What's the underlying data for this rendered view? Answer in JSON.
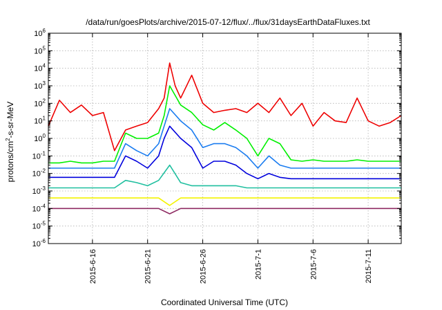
{
  "chart_data": {
    "type": "line",
    "title": "/data/run/goesPlots/archive/2015-07-12/flux/../flux/31daysEarthDataFluxes.txt",
    "xlabel": "Coordinated Universal Time (UTC)",
    "ylabel": {
      "prefix": "protons/cm",
      "sup": "2",
      "suffix": "-s-sr-MeV"
    },
    "x_range": [
      "2015-06-12",
      "2015-07-14"
    ],
    "x_ticks": [
      "2015-6-16",
      "2015-6-21",
      "2015-6-26",
      "2015-7-1",
      "2015-7-6",
      "2015-7-11"
    ],
    "y_scale": "log",
    "y_range": [
      1e-06,
      1000000.0
    ],
    "y_ticks": [
      {
        "base": "10",
        "exp": "-6"
      },
      {
        "base": "10",
        "exp": "-5"
      },
      {
        "base": "10",
        "exp": "-4"
      },
      {
        "base": "10",
        "exp": "-3"
      },
      {
        "base": "10",
        "exp": "-2"
      },
      {
        "base": "10",
        "exp": "-1"
      },
      {
        "base": "10",
        "exp": "0"
      },
      {
        "base": "10",
        "exp": "1"
      },
      {
        "base": "10",
        "exp": "2"
      },
      {
        "base": "10",
        "exp": "3"
      },
      {
        "base": "10",
        "exp": "4"
      },
      {
        "base": "10",
        "exp": "5"
      },
      {
        "base": "10",
        "exp": "6"
      }
    ],
    "grid": true,
    "series": [
      {
        "color": "#ee0000",
        "width": 1.6,
        "points": [
          [
            "2015-06-12",
            5
          ],
          [
            "2015-06-13",
            150
          ],
          [
            "2015-06-14",
            30
          ],
          [
            "2015-06-15",
            80
          ],
          [
            "2015-06-16",
            20
          ],
          [
            "2015-06-17",
            30
          ],
          [
            "2015-06-18",
            0.2
          ],
          [
            "2015-06-19",
            3
          ],
          [
            "2015-06-20",
            5
          ],
          [
            "2015-06-21",
            8
          ],
          [
            "2015-06-22",
            50
          ],
          [
            "2015-06-22T12:00",
            200
          ],
          [
            "2015-06-23",
            20000
          ],
          [
            "2015-06-23T12:00",
            1000
          ],
          [
            "2015-06-24",
            200
          ],
          [
            "2015-06-25",
            4000
          ],
          [
            "2015-06-26",
            100
          ],
          [
            "2015-06-27",
            30
          ],
          [
            "2015-06-28",
            40
          ],
          [
            "2015-06-29",
            50
          ],
          [
            "2015-06-30",
            30
          ],
          [
            "2015-07-01",
            100
          ],
          [
            "2015-07-02",
            30
          ],
          [
            "2015-07-03",
            200
          ],
          [
            "2015-07-04",
            20
          ],
          [
            "2015-07-05",
            100
          ],
          [
            "2015-07-06",
            5
          ],
          [
            "2015-07-07",
            30
          ],
          [
            "2015-07-08",
            10
          ],
          [
            "2015-07-09",
            8
          ],
          [
            "2015-07-10",
            200
          ],
          [
            "2015-07-11",
            10
          ],
          [
            "2015-07-12",
            5
          ],
          [
            "2015-07-13",
            8
          ],
          [
            "2015-07-14",
            20
          ]
        ]
      },
      {
        "color": "#00f000",
        "width": 1.6,
        "points": [
          [
            "2015-06-12",
            0.04
          ],
          [
            "2015-06-13",
            0.04
          ],
          [
            "2015-06-14",
            0.05
          ],
          [
            "2015-06-15",
            0.04
          ],
          [
            "2015-06-16",
            0.04
          ],
          [
            "2015-06-17",
            0.05
          ],
          [
            "2015-06-18",
            0.05
          ],
          [
            "2015-06-19",
            2
          ],
          [
            "2015-06-20",
            1
          ],
          [
            "2015-06-21",
            1
          ],
          [
            "2015-06-22",
            2
          ],
          [
            "2015-06-22T12:00",
            20
          ],
          [
            "2015-06-23",
            1000
          ],
          [
            "2015-06-24",
            80
          ],
          [
            "2015-06-25",
            30
          ],
          [
            "2015-06-26",
            6
          ],
          [
            "2015-06-27",
            3
          ],
          [
            "2015-06-28",
            8
          ],
          [
            "2015-06-29",
            3
          ],
          [
            "2015-06-30",
            1
          ],
          [
            "2015-07-01",
            0.1
          ],
          [
            "2015-07-02",
            1
          ],
          [
            "2015-07-03",
            0.5
          ],
          [
            "2015-07-04",
            0.06
          ],
          [
            "2015-07-05",
            0.05
          ],
          [
            "2015-07-06",
            0.06
          ],
          [
            "2015-07-07",
            0.05
          ],
          [
            "2015-07-08",
            0.05
          ],
          [
            "2015-07-09",
            0.05
          ],
          [
            "2015-07-10",
            0.06
          ],
          [
            "2015-07-11",
            0.05
          ],
          [
            "2015-07-12",
            0.05
          ],
          [
            "2015-07-13",
            0.05
          ],
          [
            "2015-07-14",
            0.05
          ]
        ]
      },
      {
        "color": "#1a7cf0",
        "width": 1.6,
        "points": [
          [
            "2015-06-12",
            0.02
          ],
          [
            "2015-06-13",
            0.02
          ],
          [
            "2015-06-14",
            0.02
          ],
          [
            "2015-06-15",
            0.02
          ],
          [
            "2015-06-16",
            0.02
          ],
          [
            "2015-06-17",
            0.02
          ],
          [
            "2015-06-18",
            0.02
          ],
          [
            "2015-06-19",
            0.5
          ],
          [
            "2015-06-20",
            0.2
          ],
          [
            "2015-06-21",
            0.1
          ],
          [
            "2015-06-22",
            0.5
          ],
          [
            "2015-06-22T12:00",
            5
          ],
          [
            "2015-06-23",
            50
          ],
          [
            "2015-06-24",
            10
          ],
          [
            "2015-06-25",
            3
          ],
          [
            "2015-06-26",
            0.3
          ],
          [
            "2015-06-27",
            0.5
          ],
          [
            "2015-06-28",
            0.5
          ],
          [
            "2015-06-29",
            0.3
          ],
          [
            "2015-06-30",
            0.1
          ],
          [
            "2015-07-01",
            0.02
          ],
          [
            "2015-07-02",
            0.1
          ],
          [
            "2015-07-03",
            0.03
          ],
          [
            "2015-07-04",
            0.02
          ],
          [
            "2015-07-05",
            0.02
          ],
          [
            "2015-07-06",
            0.02
          ],
          [
            "2015-07-07",
            0.02
          ],
          [
            "2015-07-08",
            0.02
          ],
          [
            "2015-07-09",
            0.02
          ],
          [
            "2015-07-10",
            0.02
          ],
          [
            "2015-07-11",
            0.02
          ],
          [
            "2015-07-12",
            0.02
          ],
          [
            "2015-07-13",
            0.02
          ],
          [
            "2015-07-14",
            0.02
          ]
        ]
      },
      {
        "color": "#0000dd",
        "width": 1.6,
        "points": [
          [
            "2015-06-12",
            0.006
          ],
          [
            "2015-06-13",
            0.006
          ],
          [
            "2015-06-14",
            0.006
          ],
          [
            "2015-06-15",
            0.006
          ],
          [
            "2015-06-16",
            0.006
          ],
          [
            "2015-06-17",
            0.006
          ],
          [
            "2015-06-18",
            0.006
          ],
          [
            "2015-06-19",
            0.1
          ],
          [
            "2015-06-20",
            0.05
          ],
          [
            "2015-06-21",
            0.02
          ],
          [
            "2015-06-22",
            0.1
          ],
          [
            "2015-06-22T12:00",
            1
          ],
          [
            "2015-06-23",
            5
          ],
          [
            "2015-06-24",
            1
          ],
          [
            "2015-06-25",
            0.3
          ],
          [
            "2015-06-26",
            0.02
          ],
          [
            "2015-06-27",
            0.05
          ],
          [
            "2015-06-28",
            0.05
          ],
          [
            "2015-06-29",
            0.03
          ],
          [
            "2015-06-30",
            0.01
          ],
          [
            "2015-07-01",
            0.005
          ],
          [
            "2015-07-02",
            0.01
          ],
          [
            "2015-07-03",
            0.006
          ],
          [
            "2015-07-04",
            0.005
          ],
          [
            "2015-07-05",
            0.005
          ],
          [
            "2015-07-06",
            0.005
          ],
          [
            "2015-07-07",
            0.005
          ],
          [
            "2015-07-08",
            0.005
          ],
          [
            "2015-07-09",
            0.005
          ],
          [
            "2015-07-10",
            0.005
          ],
          [
            "2015-07-11",
            0.005
          ],
          [
            "2015-07-12",
            0.005
          ],
          [
            "2015-07-13",
            0.005
          ],
          [
            "2015-07-14",
            0.005
          ]
        ]
      },
      {
        "color": "#1fbf9f",
        "width": 1.6,
        "points": [
          [
            "2015-06-12",
            0.0015
          ],
          [
            "2015-06-13",
            0.0015
          ],
          [
            "2015-06-14",
            0.0015
          ],
          [
            "2015-06-15",
            0.0015
          ],
          [
            "2015-06-16",
            0.0015
          ],
          [
            "2015-06-17",
            0.0015
          ],
          [
            "2015-06-18",
            0.0015
          ],
          [
            "2015-06-19",
            0.004
          ],
          [
            "2015-06-20",
            0.003
          ],
          [
            "2015-06-21",
            0.002
          ],
          [
            "2015-06-22",
            0.004
          ],
          [
            "2015-06-23",
            0.03
          ],
          [
            "2015-06-24",
            0.003
          ],
          [
            "2015-06-25",
            0.002
          ],
          [
            "2015-06-26",
            0.002
          ],
          [
            "2015-06-27",
            0.002
          ],
          [
            "2015-06-28",
            0.002
          ],
          [
            "2015-06-29",
            0.002
          ],
          [
            "2015-06-30",
            0.0015
          ],
          [
            "2015-07-01",
            0.0015
          ],
          [
            "2015-07-02",
            0.0015
          ],
          [
            "2015-07-03",
            0.0015
          ],
          [
            "2015-07-04",
            0.0015
          ],
          [
            "2015-07-05",
            0.0015
          ],
          [
            "2015-07-06",
            0.0015
          ],
          [
            "2015-07-07",
            0.0015
          ],
          [
            "2015-07-08",
            0.0015
          ],
          [
            "2015-07-09",
            0.0015
          ],
          [
            "2015-07-10",
            0.0015
          ],
          [
            "2015-07-11",
            0.0015
          ],
          [
            "2015-07-12",
            0.0015
          ],
          [
            "2015-07-13",
            0.0015
          ],
          [
            "2015-07-14",
            0.0015
          ]
        ]
      },
      {
        "color": "#f4f400",
        "width": 1.6,
        "points": [
          [
            "2015-06-12",
            0.0004
          ],
          [
            "2015-06-14",
            0.0004
          ],
          [
            "2015-06-16",
            0.0004
          ],
          [
            "2015-06-18",
            0.0004
          ],
          [
            "2015-06-20",
            0.0004
          ],
          [
            "2015-06-22",
            0.0004
          ],
          [
            "2015-06-23",
            0.00015
          ],
          [
            "2015-06-24",
            0.0004
          ],
          [
            "2015-06-26",
            0.0004
          ],
          [
            "2015-06-28",
            0.0004
          ],
          [
            "2015-06-30",
            0.0004
          ],
          [
            "2015-07-02",
            0.0004
          ],
          [
            "2015-07-04",
            0.0004
          ],
          [
            "2015-07-06",
            0.0004
          ],
          [
            "2015-07-08",
            0.0004
          ],
          [
            "2015-07-10",
            0.0004
          ],
          [
            "2015-07-12",
            0.0004
          ],
          [
            "2015-07-14",
            0.0004
          ]
        ]
      },
      {
        "color": "#8e2a62",
        "width": 1.6,
        "points": [
          [
            "2015-06-12",
            0.0001
          ],
          [
            "2015-06-14",
            0.0001
          ],
          [
            "2015-06-16",
            0.0001
          ],
          [
            "2015-06-18",
            0.0001
          ],
          [
            "2015-06-20",
            0.0001
          ],
          [
            "2015-06-22",
            0.0001
          ],
          [
            "2015-06-23",
            5e-05
          ],
          [
            "2015-06-24",
            0.0001
          ],
          [
            "2015-06-26",
            0.0001
          ],
          [
            "2015-06-28",
            0.0001
          ],
          [
            "2015-06-30",
            0.0001
          ],
          [
            "2015-07-02",
            0.0001
          ],
          [
            "2015-07-04",
            0.0001
          ],
          [
            "2015-07-06",
            0.0001
          ],
          [
            "2015-07-08",
            0.0001
          ],
          [
            "2015-07-10",
            0.0001
          ],
          [
            "2015-07-12",
            0.0001
          ],
          [
            "2015-07-14",
            0.0001
          ]
        ]
      }
    ]
  }
}
